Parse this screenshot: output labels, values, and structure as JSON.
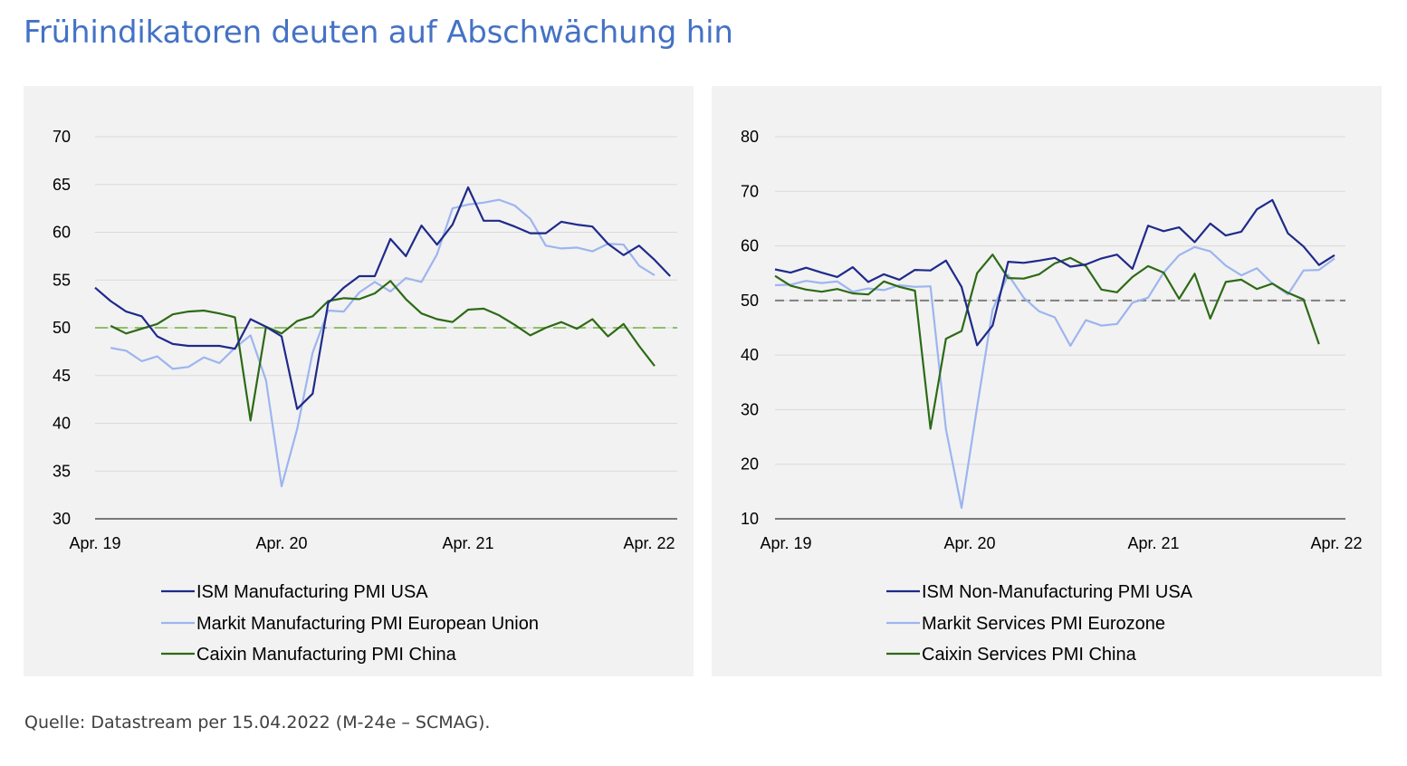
{
  "title": "Frühindikatoren deuten auf Abschwächung hin",
  "source": "Quelle: Datastream per 15.04.2022 (M-24e – SCMAG).",
  "colors": {
    "ism": "#1f2a8a",
    "markit": "#9db5ef",
    "caixin": "#2d6a16",
    "refline_left": "#8fbf6a",
    "refline_right": "#7f7f7f",
    "grid": "#d9d9d9",
    "panel_bg": "#f2f2f2"
  },
  "chart_data": [
    {
      "type": "line",
      "title": "",
      "xlabel": "",
      "ylabel": "",
      "ylim": [
        30,
        70
      ],
      "yticks": [
        "70",
        "65",
        "60",
        "55",
        "50",
        "45",
        "40",
        "35",
        "30"
      ],
      "xticks": [
        "Apr. 19",
        "Apr. 20",
        "Apr. 21",
        "Apr. 22"
      ],
      "grid": true,
      "legend_position": "bottom",
      "reference_line": 50,
      "series": [
        {
          "name": "ISM Manufacturing PMI USA",
          "color": "#1f2a8a",
          "start_month": 0,
          "values": [
            54.2,
            52.8,
            51.7,
            51.2,
            49.1,
            48.3,
            48.1,
            48.1,
            48.1,
            47.8,
            50.9,
            50.1,
            49.1,
            41.5,
            43.1,
            52.6,
            54.2,
            55.4,
            55.4,
            59.3,
            57.5,
            60.7,
            58.7,
            60.8,
            64.7,
            61.2,
            61.2,
            60.6,
            59.9,
            59.9,
            61.1,
            60.8,
            60.6,
            58.8,
            57.6,
            58.6,
            57.1,
            55.4
          ]
        },
        {
          "name": "Markit Manufacturing PMI European Union",
          "color": "#9db5ef",
          "start_month": 1,
          "values": [
            47.9,
            47.6,
            46.5,
            47.0,
            45.7,
            45.9,
            46.9,
            46.3,
            47.9,
            49.2,
            44.5,
            33.4,
            39.4,
            47.4,
            51.8,
            51.7,
            53.7,
            54.8,
            53.8,
            55.2,
            54.8,
            57.7,
            62.5,
            62.9,
            63.1,
            63.4,
            62.8,
            61.4,
            58.6,
            58.3,
            58.4,
            58.0,
            58.8,
            58.7,
            56.5,
            55.5
          ]
        },
        {
          "name": "Caixin Manufacturing PMI China",
          "color": "#2d6a16",
          "start_month": 1,
          "values": [
            50.2,
            49.4,
            49.9,
            50.4,
            51.4,
            51.7,
            51.8,
            51.5,
            51.1,
            40.3,
            50.1,
            49.4,
            50.7,
            51.2,
            52.8,
            53.1,
            53.0,
            53.6,
            54.9,
            53.0,
            51.5,
            50.9,
            50.6,
            51.9,
            52.0,
            51.3,
            50.3,
            49.2,
            50.0,
            50.6,
            49.9,
            50.9,
            49.1,
            50.4,
            48.1,
            46.0
          ]
        }
      ]
    },
    {
      "type": "line",
      "title": "",
      "xlabel": "",
      "ylabel": "",
      "ylim": [
        10,
        80
      ],
      "yticks": [
        "80",
        "70",
        "60",
        "50",
        "40",
        "30",
        "20",
        "10"
      ],
      "xticks": [
        "Apr. 19",
        "Apr. 20",
        "Apr. 21",
        "Apr. 22"
      ],
      "grid": true,
      "legend_position": "bottom",
      "reference_line": 50,
      "series": [
        {
          "name": "ISM Non-Manufacturing PMI USA",
          "color": "#1f2a8a",
          "start_month": 0,
          "values": [
            55.7,
            55.1,
            56.0,
            55.1,
            54.3,
            56.1,
            53.4,
            54.8,
            53.8,
            55.6,
            55.5,
            57.3,
            52.5,
            41.8,
            45.4,
            57.1,
            56.9,
            57.3,
            57.8,
            56.2,
            56.6,
            57.7,
            58.4,
            55.8,
            63.7,
            62.7,
            63.4,
            60.7,
            64.1,
            61.9,
            62.6,
            66.7,
            68.4,
            62.3,
            59.9,
            56.5,
            58.3
          ]
        },
        {
          "name": "Markit Services PMI Eurozone",
          "color": "#9db5ef",
          "start_month": 0,
          "values": [
            52.8,
            52.9,
            53.6,
            53.2,
            53.5,
            51.6,
            52.2,
            51.9,
            52.8,
            52.5,
            52.6,
            26.4,
            12.0,
            30.5,
            48.3,
            54.7,
            50.5,
            48.0,
            46.9,
            41.7,
            46.4,
            45.4,
            45.7,
            49.6,
            50.5,
            55.1,
            58.3,
            59.8,
            59.0,
            56.4,
            54.6,
            55.9,
            53.1,
            51.1,
            55.5,
            55.6,
            57.7
          ]
        },
        {
          "name": "Caixin Services PMI China",
          "color": "#2d6a16",
          "start_month": 0,
          "values": [
            54.5,
            52.7,
            52.0,
            51.6,
            52.1,
            51.3,
            51.1,
            53.5,
            52.5,
            51.8,
            26.5,
            43.0,
            44.4,
            55.0,
            58.4,
            54.1,
            54.0,
            54.8,
            56.8,
            57.8,
            56.3,
            52.0,
            51.5,
            54.3,
            56.3,
            55.1,
            50.3,
            54.9,
            46.7,
            53.4,
            53.8,
            52.1,
            53.1,
            51.4,
            50.2,
            42.0
          ]
        }
      ]
    }
  ]
}
